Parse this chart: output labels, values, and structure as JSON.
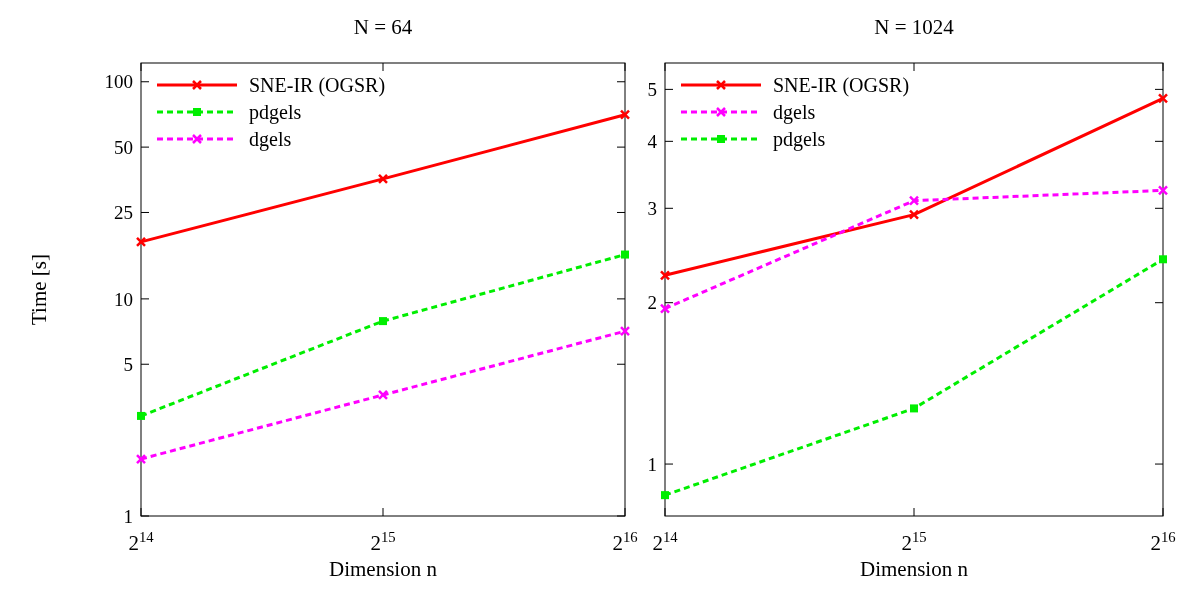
{
  "chart_data": [
    {
      "type": "line",
      "title": "N = 64",
      "xlabel": "Dimension n",
      "ylabel": "Time [s]",
      "log": "xy",
      "legend": "top left",
      "grid": false,
      "xlim": [
        16384,
        65536
      ],
      "xticks": [
        {
          "value": 16384,
          "label": "2$^{14}$"
        },
        {
          "value": 32768,
          "label": "2$^{15}$"
        },
        {
          "value": 65536,
          "label": "2$^{16}$"
        }
      ],
      "ylim": [
        1,
        122
      ],
      "yticks": [
        1,
        5,
        10,
        25,
        50,
        100
      ],
      "x": [
        16384,
        32768,
        65536
      ],
      "series": [
        {
          "name": "SNE-IR (OGSR)",
          "color": "#ff0000",
          "line_style": "solid",
          "marker": "cross",
          "values": [
            18.3,
            35.7,
            70.5
          ]
        },
        {
          "name": "pdgels",
          "color": "#00ee00",
          "line_style": "dashed",
          "marker": "square",
          "values": [
            2.89,
            7.9,
            16.0
          ]
        },
        {
          "name": "dgels",
          "color": "#ff00ff",
          "line_style": "dashed",
          "marker": "cross",
          "values": [
            1.83,
            3.61,
            7.1
          ]
        }
      ]
    },
    {
      "type": "line",
      "title": "N = 1024",
      "xlabel": "Dimension n",
      "log": "xy",
      "legend": "top left",
      "grid": false,
      "xlim": [
        16384,
        65536
      ],
      "xticks": [
        {
          "value": 16384,
          "label": "2$^{14}$"
        },
        {
          "value": 32768,
          "label": "2$^{15}$"
        },
        {
          "value": 65536,
          "label": "2$^{16}$"
        }
      ],
      "ylim": [
        0.8,
        5.6
      ],
      "yticks": [
        1,
        2,
        3,
        4,
        5
      ],
      "x": [
        16384,
        32768,
        65536
      ],
      "series": [
        {
          "name": "SNE-IR (OGSR)",
          "color": "#ff0000",
          "line_style": "solid",
          "marker": "cross",
          "values": [
            2.25,
            2.92,
            4.81
          ]
        },
        {
          "name": "dgels",
          "color": "#ff00ff",
          "line_style": "dashed",
          "marker": "cross",
          "values": [
            1.95,
            3.1,
            3.24
          ]
        },
        {
          "name": "pdgels",
          "color": "#00ee00",
          "line_style": "dashed",
          "marker": "square",
          "values": [
            0.875,
            1.27,
            2.41
          ]
        }
      ]
    }
  ]
}
